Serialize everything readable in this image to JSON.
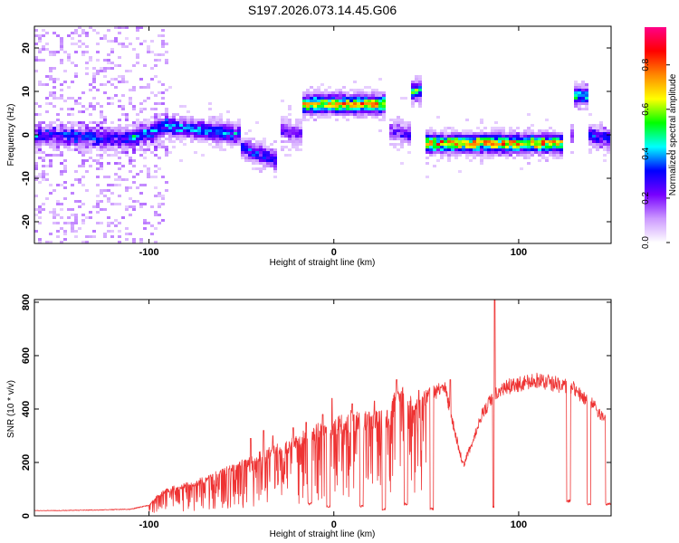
{
  "title": "S197.2026.073.14.45.G06",
  "chart_data": [
    {
      "type": "heatmap",
      "name": "spectrogram",
      "xlabel": "Height of straight line (km)",
      "ylabel": "Frequency (Hz)",
      "xlim": [
        -162,
        150
      ],
      "ylim": [
        -25,
        25
      ],
      "xticks": [
        "-100",
        "0",
        "100"
      ],
      "xtick_values": [
        -100,
        0,
        100
      ],
      "yticks": [
        "20",
        "10",
        "0",
        "-10",
        "-20"
      ],
      "ytick_values": [
        20,
        10,
        0,
        -10,
        -20
      ],
      "colorbar": {
        "label": "Normalized spectral amplitude",
        "ticks": [
          "0.0",
          "0.2",
          "0.4",
          "0.6",
          "0.8"
        ],
        "tick_values": [
          0.0,
          0.2,
          0.4,
          0.6,
          0.8
        ],
        "range": [
          0.0,
          0.97
        ],
        "colors": [
          "#ffffff",
          "#cc99ff",
          "#7700ff",
          "#0000ff",
          "#00ffff",
          "#00ff00",
          "#ffff00",
          "#ff8800",
          "#ff0000",
          "#ff0088"
        ]
      },
      "ridge": [
        {
          "x0": -162,
          "x1": -110,
          "f0": 0,
          "f1": -1,
          "amp": 0.25
        },
        {
          "x0": -110,
          "x1": -90,
          "f0": -1,
          "f1": 2,
          "amp": 0.35
        },
        {
          "x0": -90,
          "x1": -50,
          "f0": 2,
          "f1": 0,
          "amp": 0.35
        },
        {
          "x0": -50,
          "x1": -30,
          "f0": -3,
          "f1": -6,
          "amp": 0.3
        },
        {
          "x0": -28,
          "x1": -17,
          "f0": 1,
          "f1": 0,
          "amp": 0.2
        },
        {
          "x0": -17,
          "x1": 28,
          "f0": 7,
          "f1": 7,
          "amp": 0.7
        },
        {
          "x0": 30,
          "x1": 42,
          "f0": 1,
          "f1": 0,
          "amp": 0.2
        },
        {
          "x0": 42,
          "x1": 48,
          "f0": 10,
          "f1": 10,
          "amp": 0.5
        },
        {
          "x0": 50,
          "x1": 125,
          "f0": -2,
          "f1": -2,
          "amp": 0.75
        },
        {
          "x0": 127,
          "x1": 135,
          "f0": 0,
          "f1": 0,
          "amp": 0.25
        },
        {
          "x0": 130,
          "x1": 137,
          "f0": 9,
          "f1": 9,
          "amp": 0.45
        },
        {
          "x0": 137,
          "x1": 150,
          "f0": 0,
          "f1": -1,
          "amp": 0.3
        }
      ]
    },
    {
      "type": "line",
      "name": "snr",
      "xlabel": "Height of straight line (km)",
      "ylabel": "SNR (10 * v/v)",
      "xlim": [
        -162,
        150
      ],
      "ylim": [
        0,
        810
      ],
      "xticks": [
        "-100",
        "0",
        "100"
      ],
      "xtick_values": [
        -100,
        0,
        100
      ],
      "yticks": [
        "800",
        "600",
        "400",
        "200",
        "0"
      ],
      "ytick_values": [
        800,
        600,
        400,
        200,
        0
      ],
      "color": "#ee3333",
      "envelope_x": [
        -162,
        -150,
        -130,
        -110,
        -100,
        -95,
        -90,
        -80,
        -70,
        -60,
        -50,
        -40,
        -30,
        -20,
        -10,
        0,
        10,
        20,
        30,
        35,
        40,
        45,
        50,
        55,
        60,
        65,
        70,
        75,
        80,
        85,
        88,
        90,
        95,
        100,
        110,
        120,
        130,
        140,
        150
      ],
      "envelope_y": [
        20,
        20,
        22,
        25,
        40,
        80,
        100,
        120,
        140,
        170,
        200,
        230,
        260,
        290,
        330,
        350,
        380,
        370,
        390,
        480,
        440,
        420,
        450,
        470,
        490,
        330,
        190,
        280,
        380,
        440,
        460,
        470,
        490,
        500,
        510,
        500,
        480,
        420,
        330
      ],
      "spikes": [
        {
          "x": -45,
          "y": 290
        },
        {
          "x": -38,
          "y": 320
        },
        {
          "x": -33,
          "y": 300
        },
        {
          "x": -22,
          "y": 330
        },
        {
          "x": -15,
          "y": 350
        },
        {
          "x": -6,
          "y": 380
        },
        {
          "x": -1,
          "y": 440
        },
        {
          "x": 10,
          "y": 420
        },
        {
          "x": 22,
          "y": 430
        },
        {
          "x": 34,
          "y": 510
        },
        {
          "x": 46,
          "y": 470
        },
        {
          "x": 58,
          "y": 480
        },
        {
          "x": 63,
          "y": 510
        },
        {
          "x": 87,
          "y": 810
        }
      ],
      "dips": [
        {
          "x0": -14,
          "x1": -12,
          "y": 40
        },
        {
          "x0": -4,
          "x1": -2,
          "y": 30
        },
        {
          "x0": 14,
          "x1": 16,
          "y": 30
        },
        {
          "x0": 26,
          "x1": 28,
          "y": 20
        },
        {
          "x0": 38,
          "x1": 40,
          "y": 40
        },
        {
          "x0": 52,
          "x1": 54,
          "y": 20
        },
        {
          "x0": 86,
          "x1": 87,
          "y": 30
        },
        {
          "x0": 126,
          "x1": 128,
          "y": 50
        },
        {
          "x0": 137,
          "x1": 139,
          "y": 40
        },
        {
          "x0": 147,
          "x1": 150,
          "y": 40
        }
      ]
    }
  ]
}
